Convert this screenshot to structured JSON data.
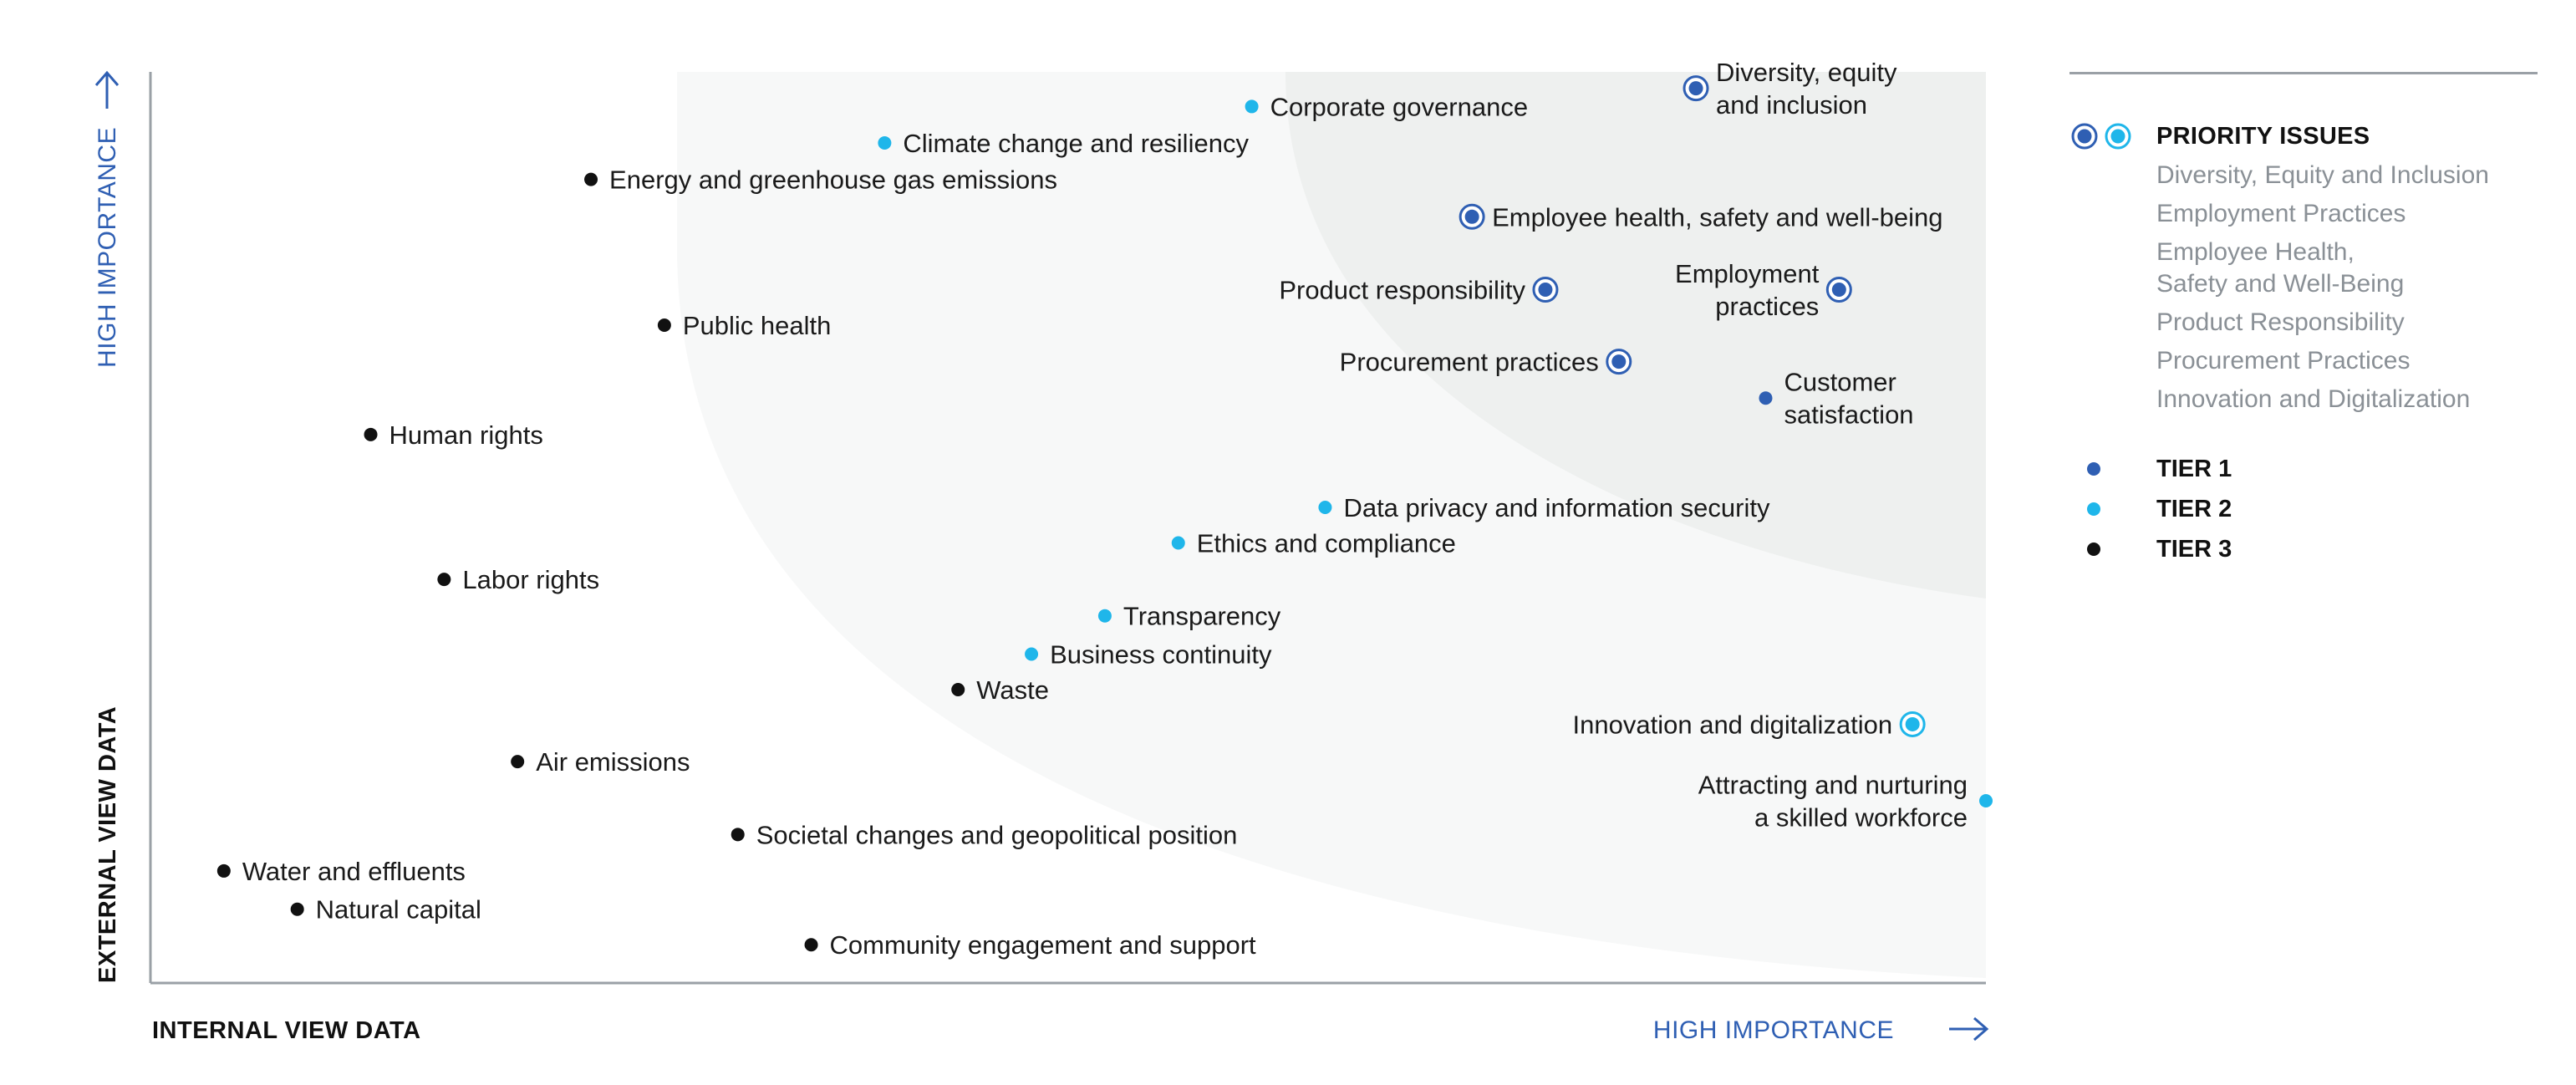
{
  "chart_data": {
    "type": "scatter",
    "xlabel": "INTERNAL VIEW DATA",
    "ylabel": "EXTERNAL VIEW DATA",
    "x_high_label": "HIGH IMPORTANCE",
    "y_high_label": "HIGH IMPORTANCE",
    "xlim": [
      0,
      100
    ],
    "ylim": [
      0,
      100
    ],
    "grid": false,
    "legend_position": "right",
    "colors": {
      "tier1": "#2f5fb3",
      "tier2": "#1fb6ea",
      "tier3": "#111111",
      "axis": "#9aa0a6",
      "accent": "#2f5fb3",
      "zone_outer": "#f7f8f8",
      "zone_inner": "#eef0ef"
    },
    "points": [
      {
        "label": "Diversity, equity\nand inclusion",
        "x": 84.2,
        "y": 98.2,
        "tier": 1,
        "priority": true,
        "side": "right"
      },
      {
        "label": "Corporate governance",
        "x": 60.0,
        "y": 96.2,
        "tier": 2,
        "priority": false,
        "side": "right"
      },
      {
        "label": "Climate change and resiliency",
        "x": 40.0,
        "y": 92.2,
        "tier": 2,
        "priority": false,
        "side": "right"
      },
      {
        "label": "Energy and greenhouse gas emissions",
        "x": 24.0,
        "y": 88.2,
        "tier": 3,
        "priority": false,
        "side": "right"
      },
      {
        "label": "Employee health, safety and well-being",
        "x": 72.0,
        "y": 84.1,
        "tier": 1,
        "priority": true,
        "side": "right"
      },
      {
        "label": "Product responsibility",
        "x": 76.0,
        "y": 76.1,
        "tier": 1,
        "priority": true,
        "side": "left"
      },
      {
        "label": "Employment\npractices",
        "x": 92.0,
        "y": 76.1,
        "tier": 1,
        "priority": true,
        "side": "left"
      },
      {
        "label": "Public health",
        "x": 28.0,
        "y": 72.2,
        "tier": 3,
        "priority": false,
        "side": "right"
      },
      {
        "label": "Procurement practices",
        "x": 80.0,
        "y": 68.2,
        "tier": 1,
        "priority": true,
        "side": "left"
      },
      {
        "label": "Customer\nsatisfaction",
        "x": 88.0,
        "y": 64.2,
        "tier": 1,
        "priority": false,
        "side": "right"
      },
      {
        "label": "Human rights",
        "x": 12.0,
        "y": 60.2,
        "tier": 3,
        "priority": false,
        "side": "right"
      },
      {
        "label": "Data privacy and information security",
        "x": 64.0,
        "y": 52.2,
        "tier": 2,
        "priority": false,
        "side": "right"
      },
      {
        "label": "Ethics and compliance",
        "x": 56.0,
        "y": 48.3,
        "tier": 2,
        "priority": false,
        "side": "right"
      },
      {
        "label": "Labor rights",
        "x": 16.0,
        "y": 44.3,
        "tier": 3,
        "priority": false,
        "side": "right"
      },
      {
        "label": "Transparency",
        "x": 52.0,
        "y": 40.3,
        "tier": 2,
        "priority": false,
        "side": "right"
      },
      {
        "label": "Business continuity",
        "x": 48.0,
        "y": 36.1,
        "tier": 2,
        "priority": false,
        "side": "right"
      },
      {
        "label": "Waste",
        "x": 44.0,
        "y": 32.2,
        "tier": 3,
        "priority": false,
        "side": "right"
      },
      {
        "label": "Innovation and digitalization",
        "x": 96.0,
        "y": 28.4,
        "tier": 2,
        "priority": true,
        "side": "left"
      },
      {
        "label": "Air emissions",
        "x": 20.0,
        "y": 24.3,
        "tier": 3,
        "priority": false,
        "side": "right"
      },
      {
        "label": "Attracting and nurturing\na skilled workforce",
        "x": 100.0,
        "y": 20.0,
        "tier": 2,
        "priority": false,
        "side": "left"
      },
      {
        "label": "Societal changes and geopolitical position",
        "x": 32.0,
        "y": 16.3,
        "tier": 3,
        "priority": false,
        "side": "right"
      },
      {
        "label": "Water and effluents",
        "x": 4.0,
        "y": 12.3,
        "tier": 3,
        "priority": false,
        "side": "right"
      },
      {
        "label": "Natural capital",
        "x": 8.0,
        "y": 8.1,
        "tier": 3,
        "priority": false,
        "side": "right"
      },
      {
        "label": "Community engagement and support",
        "x": 36.0,
        "y": 4.2,
        "tier": 3,
        "priority": false,
        "side": "right"
      }
    ]
  },
  "legend": {
    "priority_title": "PRIORITY ISSUES",
    "priority_items": [
      "Diversity, Equity and Inclusion",
      "Employment Practices",
      "Employee Health,\nSafety and Well-Being",
      "Product Responsibility",
      "Procurement Practices",
      "Innovation and Digitalization"
    ],
    "tiers": [
      {
        "label": "TIER 1",
        "color": "#2f5fb3"
      },
      {
        "label": "TIER 2",
        "color": "#1fb6ea"
      },
      {
        "label": "TIER 3",
        "color": "#111111"
      }
    ]
  }
}
